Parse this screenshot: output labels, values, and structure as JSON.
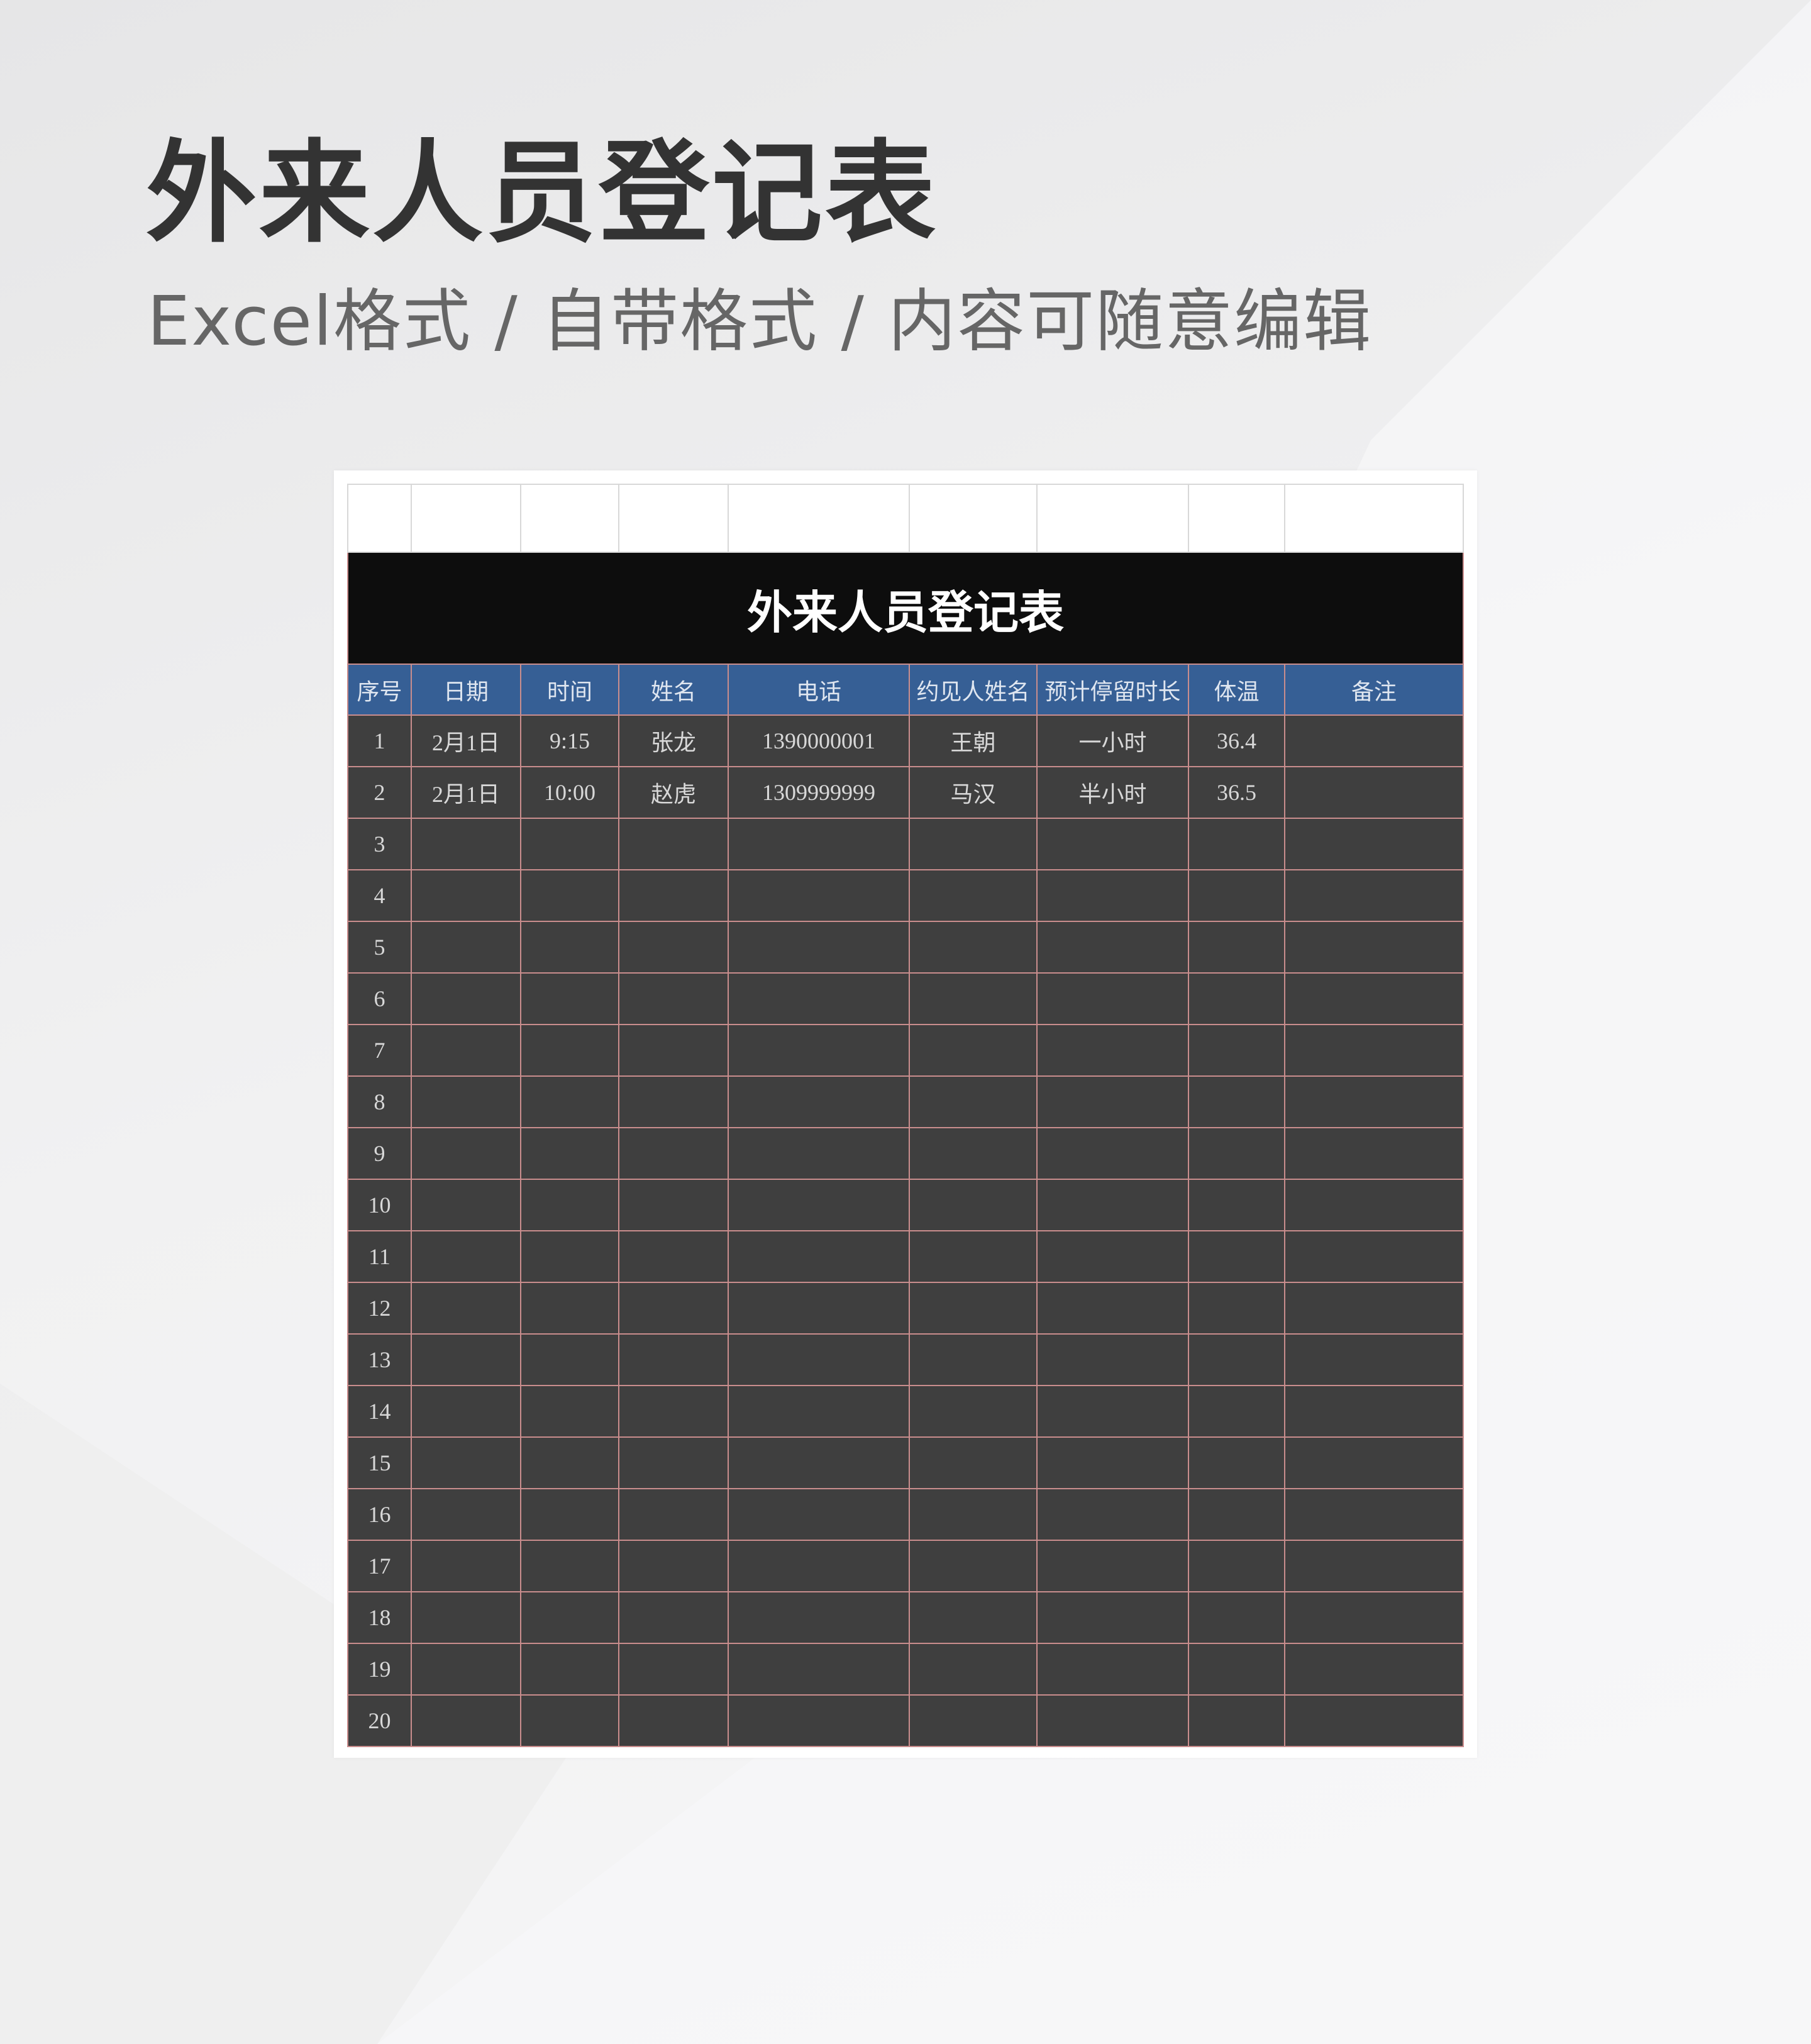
{
  "heading": {
    "title": "外来人员登记表",
    "subtitle": "Excel格式 / 自带格式 / 内容可随意编辑"
  },
  "sheet": {
    "title": "外来人员登记表",
    "columns": [
      "序号",
      "日期",
      "时间",
      "姓名",
      "电话",
      "约见人姓名",
      "预计停留时长",
      "体温",
      "备注"
    ],
    "rows": [
      [
        "1",
        "2月1日",
        "9:15",
        "张龙",
        "1390000001",
        "王朝",
        "一小时",
        "36.4",
        ""
      ],
      [
        "2",
        "2月1日",
        "10:00",
        "赵虎",
        "1309999999",
        "马汉",
        "半小时",
        "36.5",
        ""
      ],
      [
        "3",
        "",
        "",
        "",
        "",
        "",
        "",
        "",
        ""
      ],
      [
        "4",
        "",
        "",
        "",
        "",
        "",
        "",
        "",
        ""
      ],
      [
        "5",
        "",
        "",
        "",
        "",
        "",
        "",
        "",
        ""
      ],
      [
        "6",
        "",
        "",
        "",
        "",
        "",
        "",
        "",
        ""
      ],
      [
        "7",
        "",
        "",
        "",
        "",
        "",
        "",
        "",
        ""
      ],
      [
        "8",
        "",
        "",
        "",
        "",
        "",
        "",
        "",
        ""
      ],
      [
        "9",
        "",
        "",
        "",
        "",
        "",
        "",
        "",
        ""
      ],
      [
        "10",
        "",
        "",
        "",
        "",
        "",
        "",
        "",
        ""
      ],
      [
        "11",
        "",
        "",
        "",
        "",
        "",
        "",
        "",
        ""
      ],
      [
        "12",
        "",
        "",
        "",
        "",
        "",
        "",
        "",
        ""
      ],
      [
        "13",
        "",
        "",
        "",
        "",
        "",
        "",
        "",
        ""
      ],
      [
        "14",
        "",
        "",
        "",
        "",
        "",
        "",
        "",
        ""
      ],
      [
        "15",
        "",
        "",
        "",
        "",
        "",
        "",
        "",
        ""
      ],
      [
        "16",
        "",
        "",
        "",
        "",
        "",
        "",
        "",
        ""
      ],
      [
        "17",
        "",
        "",
        "",
        "",
        "",
        "",
        "",
        ""
      ],
      [
        "18",
        "",
        "",
        "",
        "",
        "",
        "",
        "",
        ""
      ],
      [
        "19",
        "",
        "",
        "",
        "",
        "",
        "",
        "",
        ""
      ],
      [
        "20",
        "",
        "",
        "",
        "",
        "",
        "",
        "",
        ""
      ]
    ]
  },
  "colors": {
    "title_bg": "#0d0d0d",
    "header_bg": "#365f95",
    "row_bg": "#3f3f3f",
    "grid": "#c98d8d"
  }
}
